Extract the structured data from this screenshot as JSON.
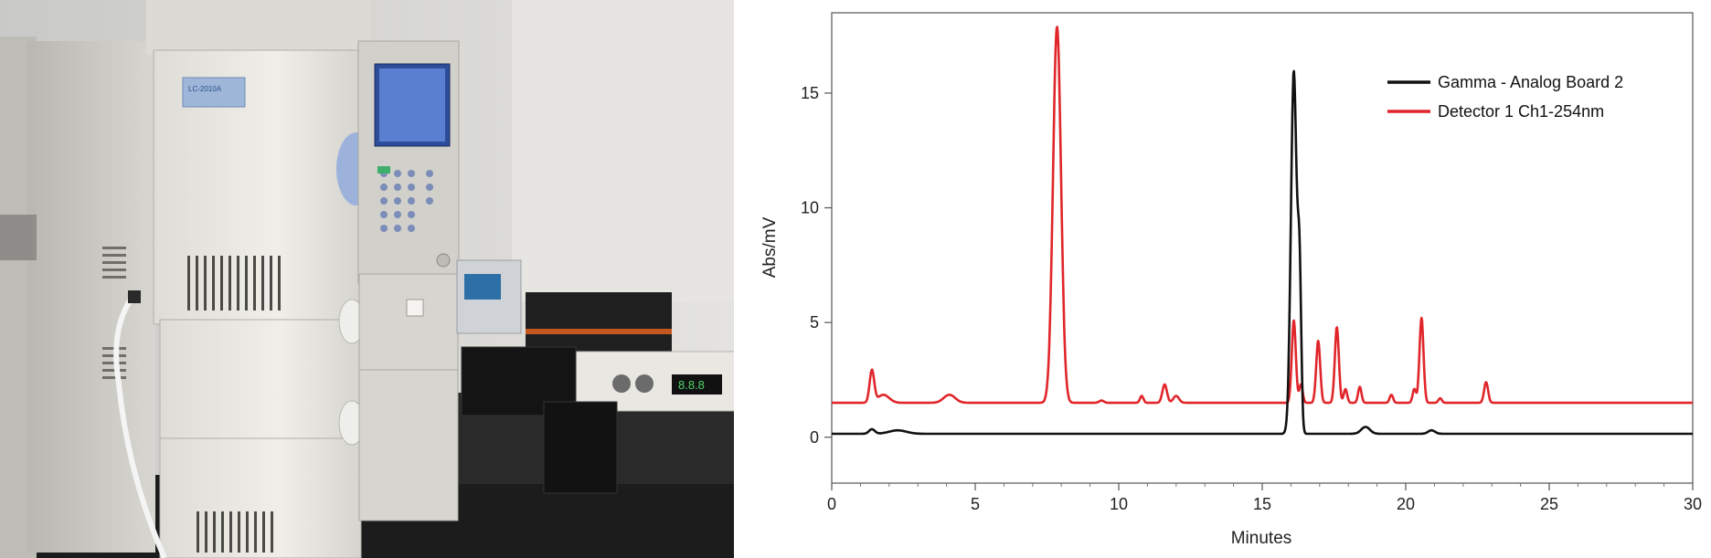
{
  "photo": {
    "instrument_label": "LC-2010A",
    "display_readout": "8.8.8"
  },
  "chart_data": {
    "type": "line",
    "title": "",
    "xlabel": "Minutes",
    "ylabel": "Abs/mV",
    "xlim": [
      0,
      30
    ],
    "ylim": [
      -2,
      18.5
    ],
    "x_ticks": [
      "0",
      "5",
      "10",
      "15",
      "20",
      "25",
      "30"
    ],
    "y_ticks": [
      "0",
      "5",
      "10",
      "15"
    ],
    "legend_position": "top-right",
    "grid": false,
    "series": [
      {
        "name": "Gamma - Analog Board 2",
        "color": "#111111",
        "baseline": 0.15,
        "peaks": [
          {
            "x": 1.4,
            "h": 0.2,
            "w": 0.1
          },
          {
            "x": 2.3,
            "h": 0.15,
            "w": 0.3
          },
          {
            "x": 16.1,
            "h": 15.8,
            "w": 0.1
          },
          {
            "x": 16.3,
            "h": 6.5,
            "w": 0.06
          },
          {
            "x": 18.6,
            "h": 0.3,
            "w": 0.15
          },
          {
            "x": 20.9,
            "h": 0.15,
            "w": 0.12
          }
        ]
      },
      {
        "name": "Detector 1 Ch1-254nm",
        "color": "#e0262a",
        "baseline": 1.5,
        "peaks": [
          {
            "x": 1.4,
            "h": 1.4,
            "w": 0.08
          },
          {
            "x": 1.8,
            "h": 0.35,
            "w": 0.2
          },
          {
            "x": 4.1,
            "h": 0.35,
            "w": 0.2
          },
          {
            "x": 7.85,
            "h": 16.4,
            "w": 0.14
          },
          {
            "x": 9.4,
            "h": 0.1,
            "w": 0.08
          },
          {
            "x": 10.8,
            "h": 0.3,
            "w": 0.06
          },
          {
            "x": 11.6,
            "h": 0.8,
            "w": 0.08
          },
          {
            "x": 12.0,
            "h": 0.3,
            "w": 0.1
          },
          {
            "x": 16.1,
            "h": 3.6,
            "w": 0.07
          },
          {
            "x": 16.35,
            "h": 0.8,
            "w": 0.06
          },
          {
            "x": 16.95,
            "h": 2.7,
            "w": 0.07
          },
          {
            "x": 17.6,
            "h": 3.3,
            "w": 0.07
          },
          {
            "x": 17.9,
            "h": 0.6,
            "w": 0.06
          },
          {
            "x": 18.4,
            "h": 0.7,
            "w": 0.06
          },
          {
            "x": 19.5,
            "h": 0.35,
            "w": 0.06
          },
          {
            "x": 20.3,
            "h": 0.6,
            "w": 0.06
          },
          {
            "x": 20.55,
            "h": 3.7,
            "w": 0.07
          },
          {
            "x": 21.2,
            "h": 0.2,
            "w": 0.06
          },
          {
            "x": 22.8,
            "h": 0.9,
            "w": 0.07
          }
        ]
      }
    ]
  }
}
